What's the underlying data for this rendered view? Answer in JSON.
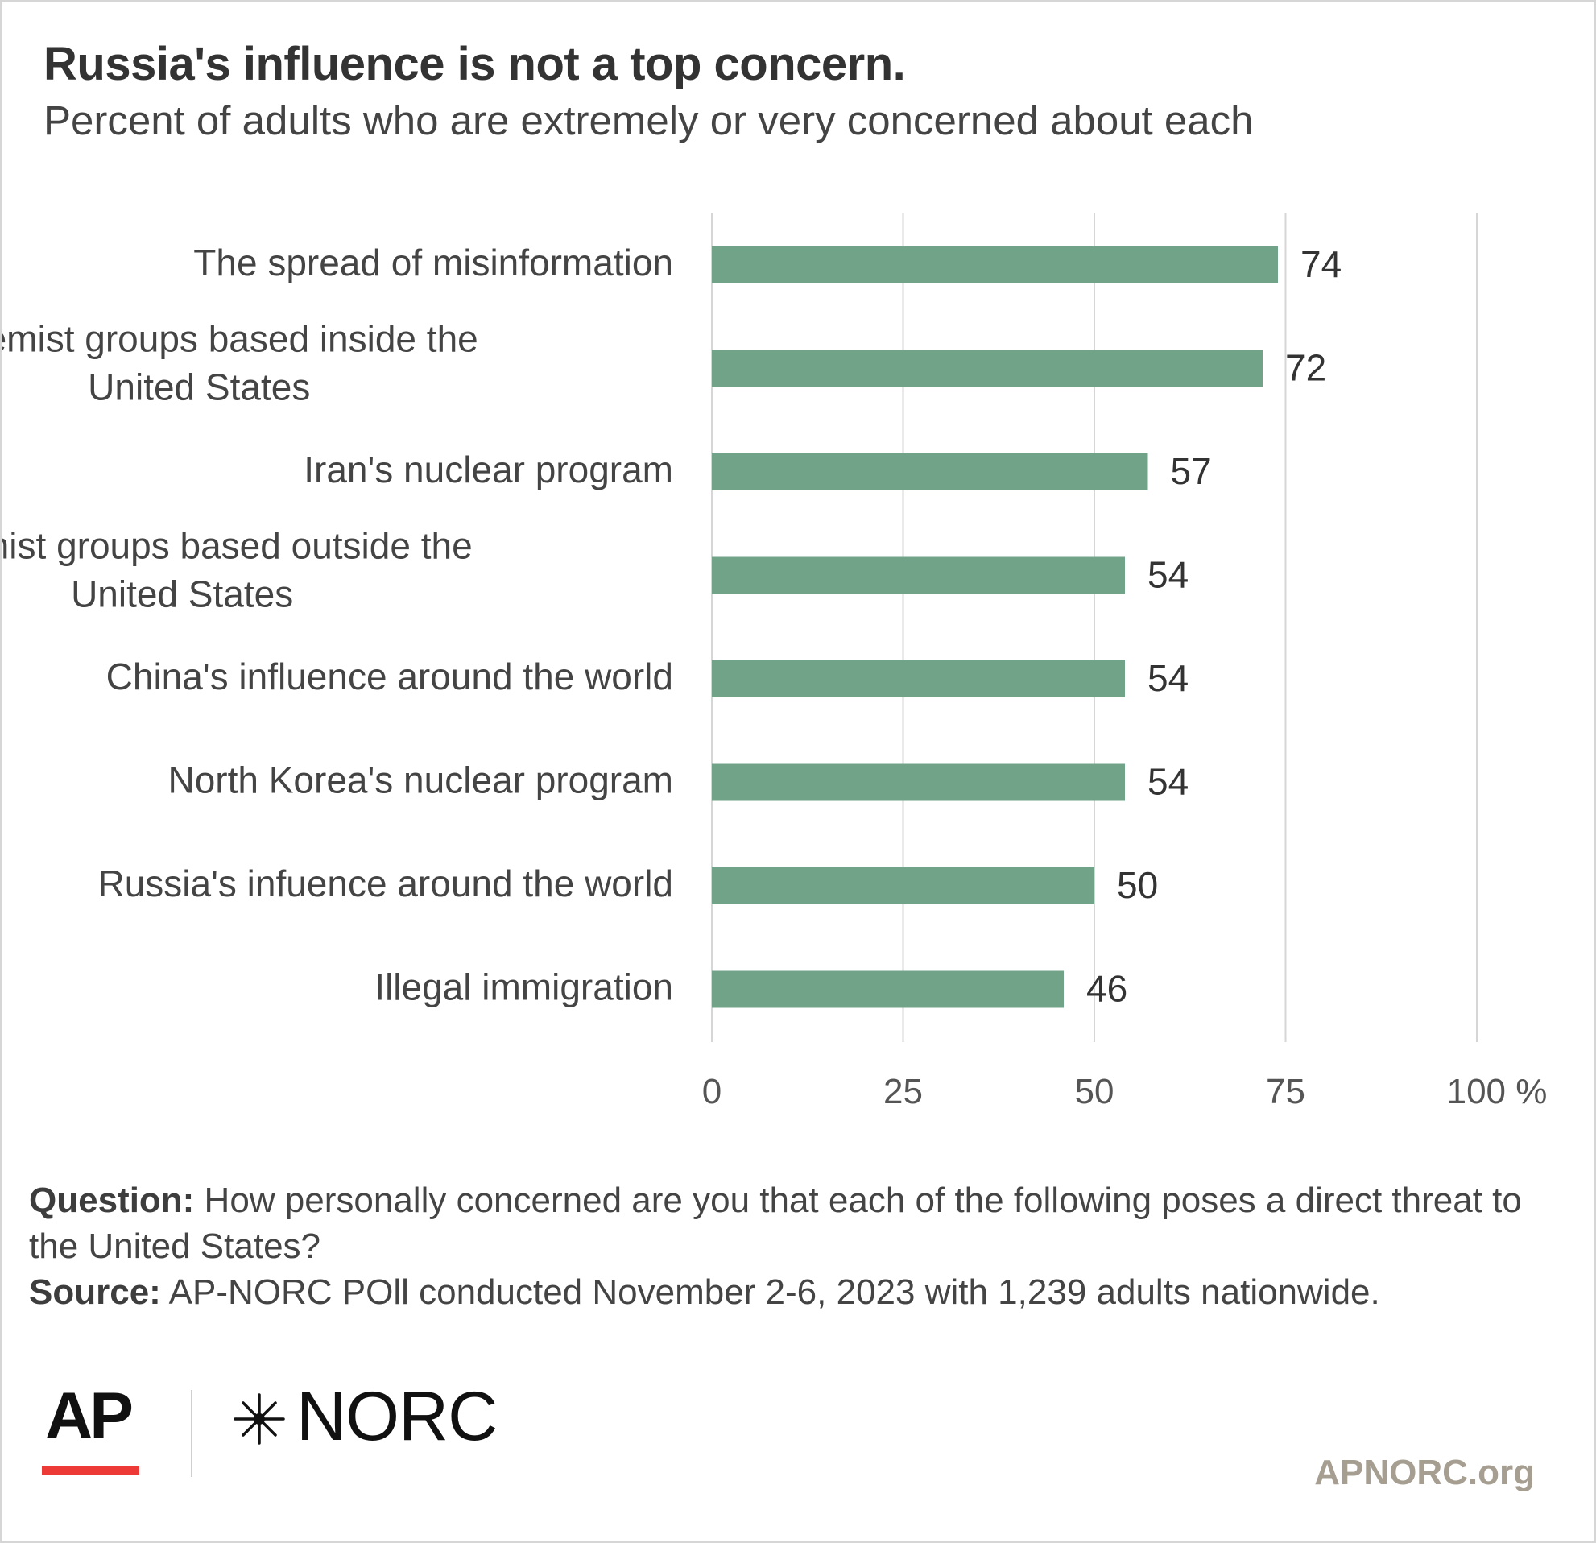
{
  "title": "Russia's influence is not a top concern.",
  "subtitle": "Percent of adults who are extremely or very concerned about each",
  "chart_data": {
    "type": "bar",
    "orientation": "horizontal",
    "categories": [
      [
        "The spread of misinformation"
      ],
      [
        "Extremist groups based inside the",
        "United States"
      ],
      [
        "Iran's nuclear program"
      ],
      [
        "Extremist groups based outside the",
        "United States"
      ],
      [
        "China's influence around the world"
      ],
      [
        "North Korea's nuclear program"
      ],
      [
        "Russia's infuence around the world"
      ],
      [
        "Illegal immigration"
      ]
    ],
    "values": [
      74,
      72,
      57,
      54,
      54,
      54,
      50,
      46
    ],
    "xlim": [
      0,
      100
    ],
    "ticks": [
      0,
      25,
      50,
      75,
      100
    ],
    "tick_labels": [
      "0",
      "25",
      "50",
      "75",
      "100 %"
    ],
    "grid": true,
    "bar_color": "#71a388",
    "grid_color": "#d6d6d6"
  },
  "notes": {
    "question_label": "Question:",
    "question_text": " How personally concerned are you that each of the following poses a direct threat to the United States?",
    "source_label": "Source:",
    "source_text": " AP-NORC POll conducted November 2-6, 2023 with 1,239 adults nationwide."
  },
  "logos": {
    "ap": "AP",
    "norc": "NORC",
    "ap_accent_color": "#ee3a36"
  },
  "site": "APNORC.org"
}
